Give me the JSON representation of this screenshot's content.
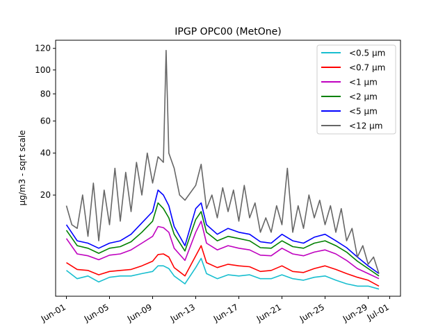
{
  "chart_data": {
    "type": "line",
    "title": "IPGP OPC00 (MetOne)",
    "ylabel": "µg/m3 - sqrt scale",
    "xlabel": "",
    "yscale": "sqrt",
    "ylim": [
      0,
      128
    ],
    "xlim": [
      "2023-05-31T00:00",
      "2023-07-02T00:00"
    ],
    "yticks": [
      20,
      40,
      60,
      80,
      100,
      120
    ],
    "xticks": [
      {
        "date": "2023-06-01",
        "label": "Jun-01"
      },
      {
        "date": "2023-06-05",
        "label": "Jun-05"
      },
      {
        "date": "2023-06-09",
        "label": "Jun-09"
      },
      {
        "date": "2023-06-13",
        "label": "Jun-13"
      },
      {
        "date": "2023-06-17",
        "label": "Jun-17"
      },
      {
        "date": "2023-06-21",
        "label": "Jun-21"
      },
      {
        "date": "2023-06-25",
        "label": "Jun-25"
      },
      {
        "date": "2023-06-29",
        "label": "Jun-29"
      },
      {
        "date": "2023-07-01",
        "label": "Jul-01"
      }
    ],
    "grid": false,
    "legend": "top-right",
    "series": [
      {
        "name": "<0.5 µm",
        "color": "#17becf",
        "x": [
          "2023-06-01T00:00",
          "2023-06-02T00:00",
          "2023-06-03T00:00",
          "2023-06-04T00:00",
          "2023-06-05T00:00",
          "2023-06-06T00:00",
          "2023-06-07T00:00",
          "2023-06-08T00:00",
          "2023-06-09T00:00",
          "2023-06-09T12:00",
          "2023-06-10T00:00",
          "2023-06-10T12:00",
          "2023-06-11T00:00",
          "2023-06-12T00:00",
          "2023-06-13T00:00",
          "2023-06-13T12:00",
          "2023-06-14T00:00",
          "2023-06-15T00:00",
          "2023-06-16T00:00",
          "2023-06-17T00:00",
          "2023-06-18T00:00",
          "2023-06-19T00:00",
          "2023-06-20T00:00",
          "2023-06-21T00:00",
          "2023-06-22T00:00",
          "2023-06-23T00:00",
          "2023-06-24T00:00",
          "2023-06-25T00:00",
          "2023-06-26T00:00",
          "2023-06-27T00:00",
          "2023-06-28T00:00",
          "2023-06-29T00:00",
          "2023-06-30T00:00"
        ],
        "y": [
          1.3,
          0.6,
          0.8,
          0.4,
          0.7,
          0.8,
          0.8,
          1.0,
          1.2,
          1.8,
          1.8,
          1.5,
          0.8,
          0.3,
          1.6,
          2.8,
          1.0,
          0.6,
          0.9,
          0.8,
          0.9,
          0.6,
          0.6,
          0.9,
          0.6,
          0.5,
          0.7,
          0.8,
          0.5,
          0.3,
          0.2,
          0.2,
          0.1
        ]
      },
      {
        "name": "<0.7 µm",
        "color": "#ff0000",
        "x": [
          "2023-06-01T00:00",
          "2023-06-02T00:00",
          "2023-06-03T00:00",
          "2023-06-04T00:00",
          "2023-06-05T00:00",
          "2023-06-06T00:00",
          "2023-06-07T00:00",
          "2023-06-08T00:00",
          "2023-06-09T00:00",
          "2023-06-09T12:00",
          "2023-06-10T00:00",
          "2023-06-10T12:00",
          "2023-06-11T00:00",
          "2023-06-12T00:00",
          "2023-06-13T00:00",
          "2023-06-13T12:00",
          "2023-06-14T00:00",
          "2023-06-15T00:00",
          "2023-06-16T00:00",
          "2023-06-17T00:00",
          "2023-06-18T00:00",
          "2023-06-19T00:00",
          "2023-06-20T00:00",
          "2023-06-21T00:00",
          "2023-06-22T00:00",
          "2023-06-23T00:00",
          "2023-06-24T00:00",
          "2023-06-25T00:00",
          "2023-06-26T00:00",
          "2023-06-27T00:00",
          "2023-06-28T00:00",
          "2023-06-29T00:00",
          "2023-06-30T00:00"
        ],
        "y": [
          2.2,
          1.4,
          1.3,
          0.9,
          1.2,
          1.3,
          1.4,
          1.8,
          2.4,
          3.4,
          3.5,
          3.0,
          1.6,
          0.8,
          3.2,
          5.0,
          2.2,
          1.6,
          2.0,
          1.8,
          1.7,
          1.2,
          1.3,
          1.8,
          1.2,
          1.1,
          1.5,
          1.8,
          1.4,
          1.0,
          0.7,
          0.5,
          0.2
        ]
      },
      {
        "name": "<1 µm",
        "color": "#bf00bf",
        "x": [
          "2023-06-01T00:00",
          "2023-06-02T00:00",
          "2023-06-03T00:00",
          "2023-06-04T00:00",
          "2023-06-05T00:00",
          "2023-06-06T00:00",
          "2023-06-07T00:00",
          "2023-06-08T00:00",
          "2023-06-09T00:00",
          "2023-06-09T12:00",
          "2023-06-10T00:00",
          "2023-06-10T12:00",
          "2023-06-11T00:00",
          "2023-06-12T00:00",
          "2023-06-13T00:00",
          "2023-06-13T12:00",
          "2023-06-14T00:00",
          "2023-06-15T00:00",
          "2023-06-16T00:00",
          "2023-06-17T00:00",
          "2023-06-18T00:00",
          "2023-06-19T00:00",
          "2023-06-20T00:00",
          "2023-06-21T00:00",
          "2023-06-22T00:00",
          "2023-06-23T00:00",
          "2023-06-24T00:00",
          "2023-06-25T00:00",
          "2023-06-26T00:00",
          "2023-06-27T00:00",
          "2023-06-28T00:00",
          "2023-06-29T00:00",
          "2023-06-30T00:00"
        ],
        "y": [
          6.5,
          3.5,
          3.2,
          2.6,
          3.3,
          3.5,
          4.2,
          5.5,
          7.0,
          9.5,
          9.2,
          8.0,
          4.5,
          2.5,
          8.0,
          11.0,
          5.5,
          4.2,
          5.0,
          4.5,
          4.2,
          3.3,
          3.2,
          4.5,
          3.5,
          3.2,
          3.8,
          4.2,
          3.5,
          2.5,
          1.5,
          1.0,
          0.6
        ]
      },
      {
        "name": "<2 µm",
        "color": "#008000",
        "x": [
          "2023-06-01T00:00",
          "2023-06-02T00:00",
          "2023-06-03T00:00",
          "2023-06-04T00:00",
          "2023-06-05T00:00",
          "2023-06-06T00:00",
          "2023-06-07T00:00",
          "2023-06-08T00:00",
          "2023-06-09T00:00",
          "2023-06-09T12:00",
          "2023-06-10T00:00",
          "2023-06-10T12:00",
          "2023-06-11T00:00",
          "2023-06-12T00:00",
          "2023-06-13T00:00",
          "2023-06-13T12:00",
          "2023-06-14T00:00",
          "2023-06-15T00:00",
          "2023-06-16T00:00",
          "2023-06-17T00:00",
          "2023-06-18T00:00",
          "2023-06-19T00:00",
          "2023-06-20T00:00",
          "2023-06-21T00:00",
          "2023-06-22T00:00",
          "2023-06-23T00:00",
          "2023-06-24T00:00",
          "2023-06-25T00:00",
          "2023-06-26T00:00",
          "2023-06-27T00:00",
          "2023-06-28T00:00",
          "2023-06-29T00:00",
          "2023-06-30T00:00"
        ],
        "y": [
          8.5,
          5.0,
          4.5,
          3.6,
          4.5,
          4.8,
          5.8,
          8.0,
          11.0,
          17.0,
          15.0,
          12.0,
          7.5,
          4.0,
          11.5,
          14.0,
          8.0,
          6.0,
          7.0,
          6.5,
          6.0,
          4.6,
          4.5,
          6.0,
          4.8,
          4.5,
          5.5,
          6.0,
          5.0,
          3.8,
          2.4,
          1.5,
          0.8
        ]
      },
      {
        "name": "<5 µm",
        "color": "#0000ff",
        "x": [
          "2023-06-01T00:00",
          "2023-06-02T00:00",
          "2023-06-03T00:00",
          "2023-06-04T00:00",
          "2023-06-05T00:00",
          "2023-06-06T00:00",
          "2023-06-07T00:00",
          "2023-06-08T00:00",
          "2023-06-09T00:00",
          "2023-06-09T12:00",
          "2023-06-10T00:00",
          "2023-06-10T12:00",
          "2023-06-11T00:00",
          "2023-06-12T00:00",
          "2023-06-13T00:00",
          "2023-06-13T12:00",
          "2023-06-14T00:00",
          "2023-06-15T00:00",
          "2023-06-16T00:00",
          "2023-06-17T00:00",
          "2023-06-18T00:00",
          "2023-06-19T00:00",
          "2023-06-20T00:00",
          "2023-06-21T00:00",
          "2023-06-22T00:00",
          "2023-06-23T00:00",
          "2023-06-24T00:00",
          "2023-06-25T00:00",
          "2023-06-26T00:00",
          "2023-06-27T00:00",
          "2023-06-28T00:00",
          "2023-06-29T00:00",
          "2023-06-30T00:00"
        ],
        "y": [
          10.0,
          6.0,
          5.5,
          4.5,
          5.5,
          6.0,
          7.5,
          10.5,
          14.0,
          22.0,
          20.0,
          16.0,
          9.5,
          5.0,
          15.0,
          17.0,
          10.0,
          7.5,
          9.0,
          8.0,
          7.5,
          5.8,
          5.5,
          7.5,
          6.0,
          5.5,
          6.8,
          7.5,
          6.0,
          4.6,
          3.0,
          1.8,
          1.0
        ]
      },
      {
        "name": "<12 µm",
        "color": "#666666",
        "x": [
          "2023-06-01T00:00",
          "2023-06-01T12:00",
          "2023-06-02T00:00",
          "2023-06-02T12:00",
          "2023-06-03T00:00",
          "2023-06-03T12:00",
          "2023-06-04T00:00",
          "2023-06-04T12:00",
          "2023-06-05T00:00",
          "2023-06-05T12:00",
          "2023-06-06T00:00",
          "2023-06-06T12:00",
          "2023-06-07T00:00",
          "2023-06-07T12:00",
          "2023-06-08T00:00",
          "2023-06-08T12:00",
          "2023-06-09T00:00",
          "2023-06-09T12:00",
          "2023-06-10T00:00",
          "2023-06-10T06:00",
          "2023-06-10T12:00",
          "2023-06-11T00:00",
          "2023-06-11T12:00",
          "2023-06-12T00:00",
          "2023-06-13T00:00",
          "2023-06-13T12:00",
          "2023-06-14T00:00",
          "2023-06-14T12:00",
          "2023-06-15T00:00",
          "2023-06-15T12:00",
          "2023-06-16T00:00",
          "2023-06-16T12:00",
          "2023-06-17T00:00",
          "2023-06-17T12:00",
          "2023-06-18T00:00",
          "2023-06-18T12:00",
          "2023-06-19T00:00",
          "2023-06-19T12:00",
          "2023-06-20T00:00",
          "2023-06-20T12:00",
          "2023-06-21T00:00",
          "2023-06-21T12:00",
          "2023-06-22T00:00",
          "2023-06-22T12:00",
          "2023-06-23T00:00",
          "2023-06-23T12:00",
          "2023-06-24T00:00",
          "2023-06-24T12:00",
          "2023-06-25T00:00",
          "2023-06-25T12:00",
          "2023-06-26T00:00",
          "2023-06-26T12:00",
          "2023-06-27T00:00",
          "2023-06-27T12:00",
          "2023-06-28T00:00",
          "2023-06-28T12:00",
          "2023-06-29T00:00",
          "2023-06-29T12:00",
          "2023-06-30T00:00"
        ],
        "y": [
          16.0,
          10.0,
          9.0,
          20.0,
          7.0,
          25.0,
          6.0,
          22.0,
          10.0,
          32.0,
          11.0,
          30.0,
          14.0,
          35.0,
          20.0,
          40.0,
          25.0,
          38.0,
          35.0,
          118.0,
          40.0,
          32.0,
          20.0,
          18.0,
          24.0,
          34.0,
          15.0,
          20.0,
          12.0,
          23.0,
          14.0,
          22.0,
          11.0,
          24.0,
          12.0,
          17.0,
          8.0,
          12.0,
          8.0,
          16.0,
          10.0,
          32.0,
          8.0,
          16.0,
          9.0,
          20.0,
          12.0,
          18.0,
          10.0,
          16.0,
          8.0,
          15.0,
          6.0,
          9.0,
          3.0,
          5.0,
          2.0,
          3.0,
          1.0
        ]
      }
    ]
  }
}
